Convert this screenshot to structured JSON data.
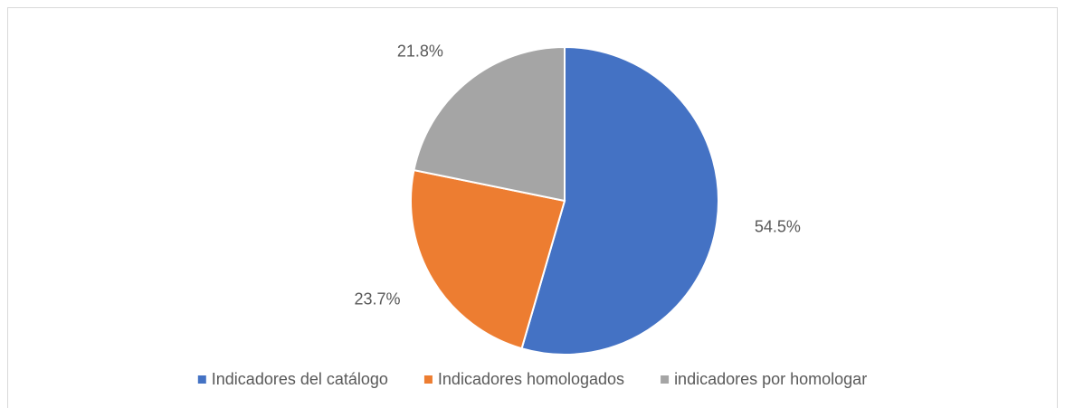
{
  "chart_data": {
    "type": "pie",
    "categories": [
      "Indicadores del catálogo",
      "Indicadores homologados",
      "indicadores por homologar"
    ],
    "values": [
      54.5,
      23.7,
      21.8
    ],
    "value_labels": [
      "54.5%",
      "23.7%",
      "21.8%"
    ],
    "colors": [
      "#4472c4",
      "#ed7d31",
      "#a5a5a5"
    ],
    "legend": "bottom"
  }
}
